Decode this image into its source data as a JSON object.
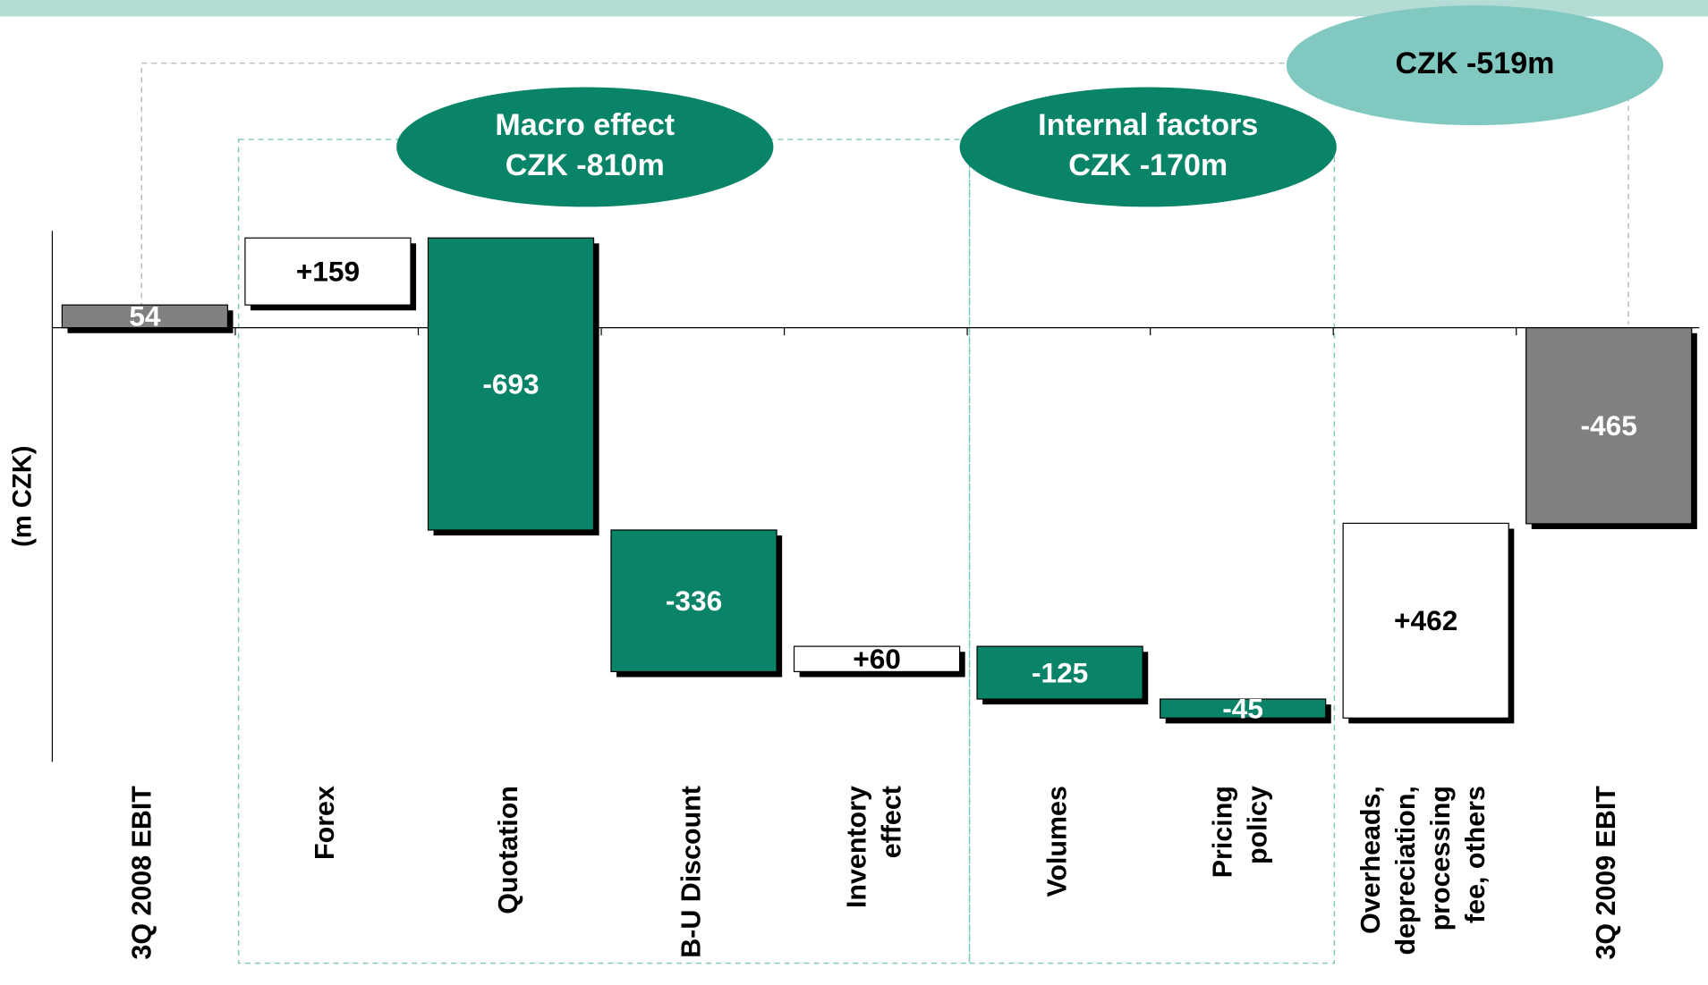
{
  "chart_data": {
    "type": "waterfall",
    "y_label": "(m CZK)",
    "categories": [
      "3Q 2008 EBIT",
      "Forex",
      "Quotation",
      "B-U Discount",
      "Inventory\neffect",
      "Volumes",
      "Pricing\npolicy",
      "Overheads,\ndepreciation,\nprocessing\nfee, others",
      "3Q 2009 EBIT"
    ],
    "values": [
      54,
      159,
      -693,
      -336,
      60,
      -125,
      -45,
      462,
      -465
    ],
    "value_labels": [
      "54",
      "+159",
      "-693",
      "-336",
      "+60",
      "-125",
      "-45",
      "+462",
      "-465"
    ],
    "is_total": [
      true,
      false,
      false,
      false,
      false,
      false,
      false,
      false,
      true
    ],
    "colors": {
      "positive": "#ffffff",
      "negative": "#0a8468",
      "total": "#808080"
    },
    "ylim": [
      -1030,
      230
    ],
    "annotations": [
      {
        "text": "Macro effect\nCZK -810m"
      },
      {
        "text": "Internal factors\nCZK -170m"
      },
      {
        "text": "CZK -519m"
      }
    ]
  }
}
